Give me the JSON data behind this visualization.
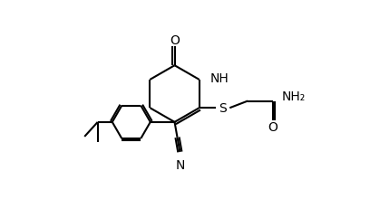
{
  "background_color": "#ffffff",
  "line_color": "#000000",
  "line_width": 1.5,
  "font_size": 10,
  "figure_width": 4.08,
  "figure_height": 2.32,
  "dpi": 100,
  "xlim": [
    0,
    10
  ],
  "ylim": [
    0,
    6
  ]
}
